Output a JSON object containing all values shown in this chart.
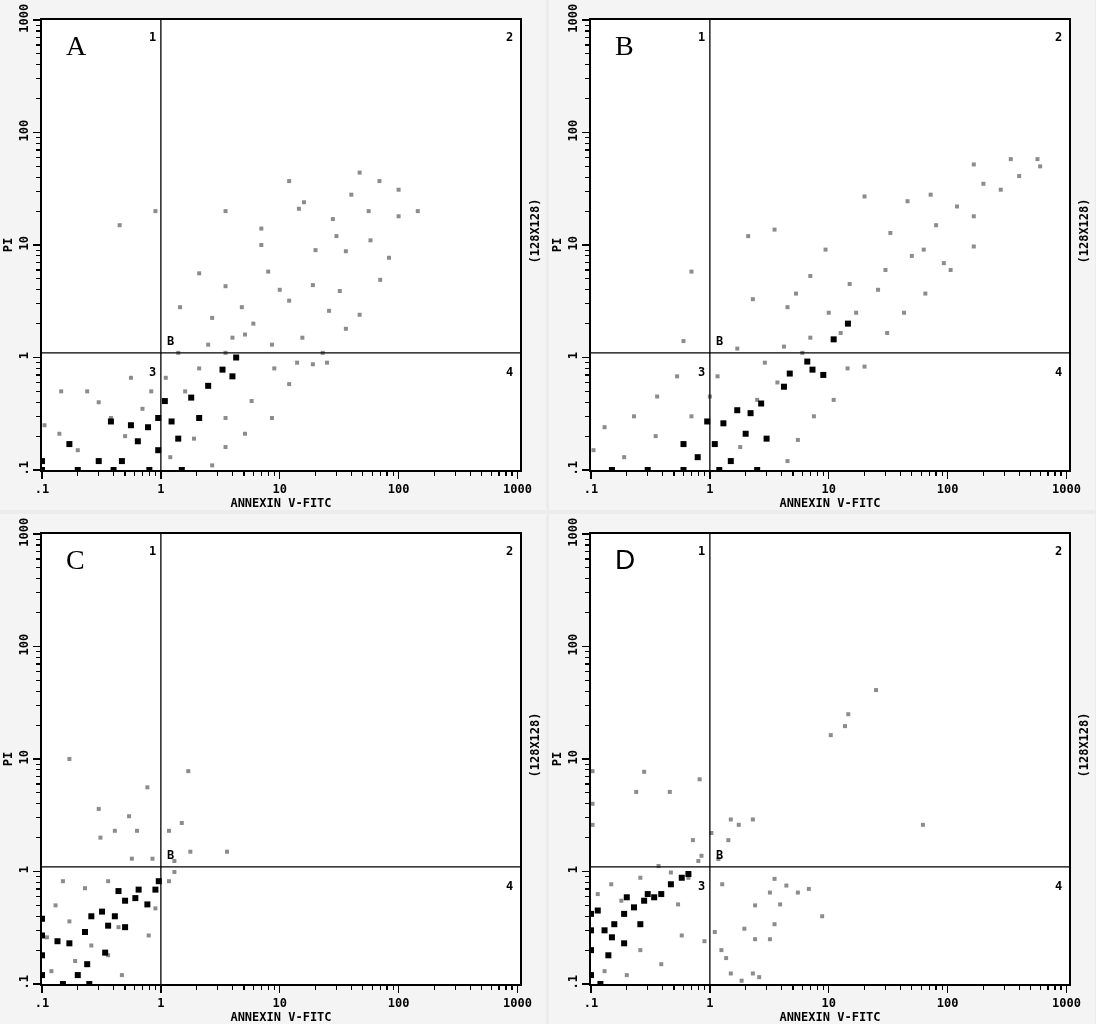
{
  "chart_data": [
    {
      "type": "scatter",
      "title": "A",
      "xlabel": "ANNEXIN V-FITC",
      "ylabel": "PI",
      "log": "xy",
      "marker": "square",
      "xlim": [
        0.1,
        1050
      ],
      "ylim": [
        0.1,
        1000
      ],
      "xticks": [
        {
          "value": 0.1,
          "label": ".1"
        },
        {
          "value": 0.2,
          "label": null
        },
        {
          "value": 0.3,
          "label": null
        },
        {
          "value": 0.4,
          "label": null
        },
        {
          "value": 0.5,
          "label": null
        },
        {
          "value": 0.6,
          "label": null
        },
        {
          "value": 0.7,
          "label": null
        },
        {
          "value": 0.8,
          "label": null
        },
        {
          "value": 0.9,
          "label": null
        },
        1,
        {
          "value": 2,
          "label": null
        },
        {
          "value": 3,
          "label": null
        },
        {
          "value": 4,
          "label": null
        },
        {
          "value": 5,
          "label": null
        },
        {
          "value": 6,
          "label": null
        },
        {
          "value": 7,
          "label": null
        },
        {
          "value": 8,
          "label": null
        },
        {
          "value": 9,
          "label": null
        },
        10,
        {
          "value": 20,
          "label": null
        },
        {
          "value": 30,
          "label": null
        },
        {
          "value": 40,
          "label": null
        },
        {
          "value": 50,
          "label": null
        },
        {
          "value": 60,
          "label": null
        },
        {
          "value": 70,
          "label": null
        },
        {
          "value": 80,
          "label": null
        },
        {
          "value": 90,
          "label": null
        },
        100,
        {
          "value": 200,
          "label": null
        },
        {
          "value": 300,
          "label": null
        },
        {
          "value": 400,
          "label": null
        },
        {
          "value": 500,
          "label": null
        },
        {
          "value": 600,
          "label": null
        },
        {
          "value": 700,
          "label": null
        },
        {
          "value": 800,
          "label": null
        },
        {
          "value": 900,
          "label": null
        },
        1000
      ],
      "yticks": [
        {
          "value": 0.1,
          "label": ".1"
        },
        {
          "value": 0.2,
          "label": null
        },
        {
          "value": 0.3,
          "label": null
        },
        {
          "value": 0.4,
          "label": null
        },
        {
          "value": 0.5,
          "label": null
        },
        {
          "value": 0.6,
          "label": null
        },
        {
          "value": 0.7,
          "label": null
        },
        {
          "value": 0.8,
          "label": null
        },
        {
          "value": 0.9,
          "label": null
        },
        1,
        {
          "value": 2,
          "label": null
        },
        {
          "value": 3,
          "label": null
        },
        {
          "value": 4,
          "label": null
        },
        {
          "value": 5,
          "label": null
        },
        {
          "value": 6,
          "label": null
        },
        {
          "value": 7,
          "label": null
        },
        {
          "value": 8,
          "label": null
        },
        {
          "value": 9,
          "label": null
        },
        10,
        {
          "value": 20,
          "label": null
        },
        {
          "value": 30,
          "label": null
        },
        {
          "value": 40,
          "label": null
        },
        {
          "value": 50,
          "label": null
        },
        {
          "value": 60,
          "label": null
        },
        {
          "value": 70,
          "label": null
        },
        {
          "value": 80,
          "label": null
        },
        {
          "value": 90,
          "label": null
        },
        100,
        {
          "value": 200,
          "label": null
        },
        {
          "value": 300,
          "label": null
        },
        {
          "value": 400,
          "label": null
        },
        {
          "value": 500,
          "label": null
        },
        {
          "value": 600,
          "label": null
        },
        {
          "value": 700,
          "label": null
        },
        {
          "value": 800,
          "label": null
        },
        {
          "value": 900,
          "label": null
        },
        1000
      ],
      "ref_lines": [
        {
          "axis": "x",
          "value": 1
        },
        {
          "axis": "y",
          "value": 1.1
        }
      ],
      "annotations": [
        "1",
        "2",
        "3",
        "4",
        "B",
        "(128X128)"
      ],
      "series": [
        {
          "color": "#8c8c8c",
          "x": [
            0.45,
            0.9,
            3.5,
            2.1,
            3.5,
            1.45,
            12,
            47,
            69,
            100,
            145,
            100,
            83,
            70,
            47,
            36,
            23,
            19,
            12,
            8.6,
            5.1,
            3.5,
            2.7,
            0.145,
            0.24,
            0.56,
            0.105,
            5.1,
            7,
            7,
            8,
            14.5,
            16,
            28,
            36,
            19,
            12,
            4.8,
            2.7,
            56,
            58,
            32,
            26,
            15.5,
            8.6,
            3.5,
            2.1,
            1.4,
            1.1,
            0.83,
            5.8,
            3.5,
            1.9,
            0.38,
            0.2,
            0.14,
            9,
            40,
            30,
            20,
            10,
            6,
            4,
            2.5,
            1.6,
            0.7,
            0.3,
            0.5,
            1.2,
            25,
            14
          ],
          "values": [
            15,
            20,
            20,
            5.6,
            4.3,
            2.8,
            37,
            44,
            37,
            31,
            20,
            18,
            7.7,
            4.9,
            2.4,
            1.8,
            1.1,
            0.87,
            0.58,
            0.29,
            0.21,
            0.16,
            0.11,
            0.5,
            0.5,
            0.66,
            0.25,
            1.6,
            14,
            10,
            5.8,
            21,
            24,
            17,
            8.8,
            4.4,
            3.2,
            2.8,
            2.25,
            20,
            11,
            3.9,
            2.6,
            1.5,
            1.3,
            1.1,
            0.8,
            1.1,
            0.66,
            0.5,
            0.41,
            0.29,
            0.19,
            0.29,
            0.15,
            0.21,
            0.8,
            28,
            12,
            9,
            4,
            2,
            1.5,
            1.3,
            0.5,
            0.35,
            0.4,
            0.2,
            0.13,
            0.9,
            0.9
          ]
        },
        {
          "color": "#000000",
          "x": [
            0.17,
            0.38,
            0.47,
            0.56,
            0.64,
            0.78,
            0.95,
            1.08,
            1.23,
            1.4,
            1.8,
            2.1,
            3.3,
            4,
            4.3,
            2.5,
            0.3,
            0.95,
            0.1,
            0.2,
            0.4,
            0.8,
            1.5,
            0.1
          ],
          "values": [
            0.17,
            0.27,
            0.12,
            0.25,
            0.18,
            0.24,
            0.15,
            0.41,
            0.27,
            0.19,
            0.44,
            0.29,
            0.78,
            0.68,
            1.0,
            0.56,
            0.12,
            0.29,
            0.1,
            0.1,
            0.1,
            0.1,
            0.1,
            0.12
          ]
        }
      ]
    },
    {
      "type": "scatter",
      "title": "B",
      "xlabel": "ANNEXIN V-FITC",
      "ylabel": "PI",
      "log": "xy",
      "marker": "square",
      "xlim": [
        0.1,
        1050
      ],
      "ylim": [
        0.1,
        1000
      ],
      "xticks": [
        {
          "value": 0.1,
          "label": ".1"
        },
        {
          "value": 0.2,
          "label": null
        },
        {
          "value": 0.3,
          "label": null
        },
        {
          "value": 0.4,
          "label": null
        },
        {
          "value": 0.5,
          "label": null
        },
        {
          "value": 0.6,
          "label": null
        },
        {
          "value": 0.7,
          "label": null
        },
        {
          "value": 0.8,
          "label": null
        },
        {
          "value": 0.9,
          "label": null
        },
        1,
        {
          "value": 2,
          "label": null
        },
        {
          "value": 3,
          "label": null
        },
        {
          "value": 4,
          "label": null
        },
        {
          "value": 5,
          "label": null
        },
        {
          "value": 6,
          "label": null
        },
        {
          "value": 7,
          "label": null
        },
        {
          "value": 8,
          "label": null
        },
        {
          "value": 9,
          "label": null
        },
        10,
        {
          "value": 20,
          "label": null
        },
        {
          "value": 30,
          "label": null
        },
        {
          "value": 40,
          "label": null
        },
        {
          "value": 50,
          "label": null
        },
        {
          "value": 60,
          "label": null
        },
        {
          "value": 70,
          "label": null
        },
        {
          "value": 80,
          "label": null
        },
        {
          "value": 90,
          "label": null
        },
        100,
        {
          "value": 200,
          "label": null
        },
        {
          "value": 300,
          "label": null
        },
        {
          "value": 400,
          "label": null
        },
        {
          "value": 500,
          "label": null
        },
        {
          "value": 600,
          "label": null
        },
        {
          "value": 700,
          "label": null
        },
        {
          "value": 800,
          "label": null
        },
        {
          "value": 900,
          "label": null
        },
        1000
      ],
      "yticks": [
        {
          "value": 0.1,
          "label": ".1"
        },
        {
          "value": 0.2,
          "label": null
        },
        {
          "value": 0.3,
          "label": null
        },
        {
          "value": 0.4,
          "label": null
        },
        {
          "value": 0.5,
          "label": null
        },
        {
          "value": 0.6,
          "label": null
        },
        {
          "value": 0.7,
          "label": null
        },
        {
          "value": 0.8,
          "label": null
        },
        {
          "value": 0.9,
          "label": null
        },
        1,
        {
          "value": 2,
          "label": null
        },
        {
          "value": 3,
          "label": null
        },
        {
          "value": 4,
          "label": null
        },
        {
          "value": 5,
          "label": null
        },
        {
          "value": 6,
          "label": null
        },
        {
          "value": 7,
          "label": null
        },
        {
          "value": 8,
          "label": null
        },
        {
          "value": 9,
          "label": null
        },
        10,
        {
          "value": 20,
          "label": null
        },
        {
          "value": 30,
          "label": null
        },
        {
          "value": 40,
          "label": null
        },
        {
          "value": 50,
          "label": null
        },
        {
          "value": 60,
          "label": null
        },
        {
          "value": 70,
          "label": null
        },
        {
          "value": 80,
          "label": null
        },
        {
          "value": 90,
          "label": null
        },
        100,
        {
          "value": 200,
          "label": null
        },
        {
          "value": 300,
          "label": null
        },
        {
          "value": 400,
          "label": null
        },
        {
          "value": 500,
          "label": null
        },
        {
          "value": 600,
          "label": null
        },
        {
          "value": 700,
          "label": null
        },
        {
          "value": 800,
          "label": null
        },
        {
          "value": 900,
          "label": null
        },
        1000
      ],
      "ref_lines": [
        {
          "axis": "x",
          "value": 1
        },
        {
          "axis": "y",
          "value": 1.1
        }
      ],
      "annotations": [
        "1",
        "2",
        "3",
        "4",
        "B",
        "(128X128)"
      ],
      "series": [
        {
          "color": "#8c8c8c",
          "x": [
            0.7,
            0.6,
            2.1,
            3.5,
            2.3,
            4.5,
            5.3,
            7,
            9.4,
            20,
            46,
            72,
            166,
            340,
            570,
            600,
            400,
            280,
            166,
            166,
            106,
            65,
            43,
            31,
            20,
            14.4,
            11,
            7.5,
            5.5,
            4.5,
            33,
            63,
            93,
            26,
            17,
            12.6,
            7,
            4.2,
            1.7,
            2.9,
            1.16,
            0.53,
            0.36,
            0.23,
            0.13,
            0.105,
            0.19,
            2.5,
            1.8,
            0.7,
            3.7,
            120,
            200,
            80,
            50,
            30,
            15,
            10,
            6,
            0.35,
            1.0
          ],
          "values": [
            5.8,
            1.4,
            12,
            13.7,
            3.3,
            2.8,
            3.7,
            5.3,
            9.1,
            27,
            24.5,
            28,
            52,
            58,
            58,
            50,
            41,
            31,
            18,
            9.7,
            6,
            3.7,
            2.5,
            1.65,
            0.83,
            0.8,
            0.42,
            0.3,
            0.185,
            0.12,
            12.8,
            9.1,
            6.9,
            4,
            2.5,
            1.65,
            1.5,
            1.25,
            1.2,
            0.9,
            0.68,
            0.68,
            0.45,
            0.3,
            0.24,
            0.15,
            0.13,
            0.42,
            0.16,
            0.3,
            0.6,
            22,
            35,
            15,
            8,
            6,
            4.5,
            2.5,
            1.1,
            0.2,
            0.45
          ]
        },
        {
          "color": "#000000",
          "x": [
            4.7,
            7.3,
            9,
            6.6,
            14.5,
            11,
            1.7,
            2.2,
            2.7,
            1.3,
            1.1,
            0.79,
            0.6,
            0.95,
            2.0,
            4.2,
            1.5,
            3.0,
            0.15,
            0.3,
            0.6,
            1.2,
            2.5
          ],
          "values": [
            0.72,
            0.78,
            0.7,
            0.92,
            2.0,
            1.45,
            0.34,
            0.32,
            0.39,
            0.26,
            0.17,
            0.13,
            0.17,
            0.27,
            0.21,
            0.55,
            0.12,
            0.19,
            0.1,
            0.1,
            0.1,
            0.1,
            0.1
          ]
        }
      ]
    },
    {
      "type": "scatter",
      "title": "C",
      "xlabel": "ANNEXIN V-FITC",
      "ylabel": "PI",
      "log": "xy",
      "marker": "square",
      "xlim": [
        0.1,
        1050
      ],
      "ylim": [
        0.1,
        1000
      ],
      "xticks": [
        {
          "value": 0.1,
          "label": ".1"
        },
        {
          "value": 0.2,
          "label": null
        },
        {
          "value": 0.3,
          "label": null
        },
        {
          "value": 0.4,
          "label": null
        },
        {
          "value": 0.5,
          "label": null
        },
        {
          "value": 0.6,
          "label": null
        },
        {
          "value": 0.7,
          "label": null
        },
        {
          "value": 0.8,
          "label": null
        },
        {
          "value": 0.9,
          "label": null
        },
        1,
        {
          "value": 2,
          "label": null
        },
        {
          "value": 3,
          "label": null
        },
        {
          "value": 4,
          "label": null
        },
        {
          "value": 5,
          "label": null
        },
        {
          "value": 6,
          "label": null
        },
        {
          "value": 7,
          "label": null
        },
        {
          "value": 8,
          "label": null
        },
        {
          "value": 9,
          "label": null
        },
        10,
        {
          "value": 20,
          "label": null
        },
        {
          "value": 30,
          "label": null
        },
        {
          "value": 40,
          "label": null
        },
        {
          "value": 50,
          "label": null
        },
        {
          "value": 60,
          "label": null
        },
        {
          "value": 70,
          "label": null
        },
        {
          "value": 80,
          "label": null
        },
        {
          "value": 90,
          "label": null
        },
        100,
        {
          "value": 200,
          "label": null
        },
        {
          "value": 300,
          "label": null
        },
        {
          "value": 400,
          "label": null
        },
        {
          "value": 500,
          "label": null
        },
        {
          "value": 600,
          "label": null
        },
        {
          "value": 700,
          "label": null
        },
        {
          "value": 800,
          "label": null
        },
        {
          "value": 900,
          "label": null
        },
        1000
      ],
      "yticks": [
        {
          "value": 0.1,
          "label": ".1"
        },
        {
          "value": 0.2,
          "label": null
        },
        {
          "value": 0.3,
          "label": null
        },
        {
          "value": 0.4,
          "label": null
        },
        {
          "value": 0.5,
          "label": null
        },
        {
          "value": 0.6,
          "label": null
        },
        {
          "value": 0.7,
          "label": null
        },
        {
          "value": 0.8,
          "label": null
        },
        {
          "value": 0.9,
          "label": null
        },
        1,
        {
          "value": 2,
          "label": null
        },
        {
          "value": 3,
          "label": null
        },
        {
          "value": 4,
          "label": null
        },
        {
          "value": 5,
          "label": null
        },
        {
          "value": 6,
          "label": null
        },
        {
          "value": 7,
          "label": null
        },
        {
          "value": 8,
          "label": null
        },
        {
          "value": 9,
          "label": null
        },
        10,
        {
          "value": 20,
          "label": null
        },
        {
          "value": 30,
          "label": null
        },
        {
          "value": 40,
          "label": null
        },
        {
          "value": 50,
          "label": null
        },
        {
          "value": 60,
          "label": null
        },
        {
          "value": 70,
          "label": null
        },
        {
          "value": 80,
          "label": null
        },
        {
          "value": 90,
          "label": null
        },
        100,
        {
          "value": 200,
          "label": null
        },
        {
          "value": 300,
          "label": null
        },
        {
          "value": 400,
          "label": null
        },
        {
          "value": 500,
          "label": null
        },
        {
          "value": 600,
          "label": null
        },
        {
          "value": 700,
          "label": null
        },
        {
          "value": 800,
          "label": null
        },
        {
          "value": 900,
          "label": null
        },
        1000
      ],
      "ref_lines": [
        {
          "axis": "x",
          "value": 1
        },
        {
          "axis": "y",
          "value": 1.1
        }
      ],
      "annotations": [
        "1",
        "2",
        "4",
        "B",
        "(128X128)"
      ],
      "series": [
        {
          "color": "#8c8c8c",
          "x": [
            0.17,
            1.7,
            0.77,
            0.3,
            0.54,
            0.63,
            0.41,
            0.31,
            1.17,
            1.5,
            3.6,
            1.77,
            0.85,
            0.57,
            1.3,
            0.15,
            0.36,
            0.23,
            1.17,
            1.3,
            0.9,
            0.79,
            0.44,
            0.36,
            0.19,
            0.12,
            0.13,
            0.26,
            0.47,
            0.17,
            0.11
          ],
          "values": [
            10,
            7.8,
            5.6,
            3.6,
            3.1,
            2.3,
            2.3,
            2.0,
            2.3,
            2.7,
            1.5,
            1.5,
            1.3,
            1.3,
            1.24,
            0.82,
            0.82,
            0.71,
            0.82,
            0.99,
            0.47,
            0.27,
            0.32,
            0.18,
            0.16,
            0.13,
            0.5,
            0.22,
            0.12,
            0.36,
            0.26
          ]
        },
        {
          "color": "#000000",
          "x": [
            0.135,
            0.17,
            0.23,
            0.26,
            0.32,
            0.41,
            0.36,
            0.5,
            0.44,
            0.5,
            0.61,
            0.65,
            0.77,
            0.96,
            0.9,
            0.24,
            0.34,
            0.2,
            0.1,
            0.1,
            0.1,
            0.1,
            0.15,
            0.25
          ],
          "values": [
            0.24,
            0.23,
            0.29,
            0.4,
            0.44,
            0.4,
            0.33,
            0.32,
            0.67,
            0.55,
            0.58,
            0.69,
            0.51,
            0.82,
            0.69,
            0.15,
            0.19,
            0.12,
            0.12,
            0.18,
            0.27,
            0.38,
            0.1,
            0.1
          ]
        }
      ]
    },
    {
      "type": "scatter",
      "title": "D",
      "xlabel": "ANNEXIN V-FITC",
      "ylabel": "PI",
      "log": "xy",
      "marker": "square",
      "xlim": [
        0.1,
        1050
      ],
      "ylim": [
        0.1,
        1000
      ],
      "xticks": [
        {
          "value": 0.1,
          "label": ".1"
        },
        {
          "value": 0.2,
          "label": null
        },
        {
          "value": 0.3,
          "label": null
        },
        {
          "value": 0.4,
          "label": null
        },
        {
          "value": 0.5,
          "label": null
        },
        {
          "value": 0.6,
          "label": null
        },
        {
          "value": 0.7,
          "label": null
        },
        {
          "value": 0.8,
          "label": null
        },
        {
          "value": 0.9,
          "label": null
        },
        1,
        {
          "value": 2,
          "label": null
        },
        {
          "value": 3,
          "label": null
        },
        {
          "value": 4,
          "label": null
        },
        {
          "value": 5,
          "label": null
        },
        {
          "value": 6,
          "label": null
        },
        {
          "value": 7,
          "label": null
        },
        {
          "value": 8,
          "label": null
        },
        {
          "value": 9,
          "label": null
        },
        10,
        {
          "value": 20,
          "label": null
        },
        {
          "value": 30,
          "label": null
        },
        {
          "value": 40,
          "label": null
        },
        {
          "value": 50,
          "label": null
        },
        {
          "value": 60,
          "label": null
        },
        {
          "value": 70,
          "label": null
        },
        {
          "value": 80,
          "label": null
        },
        {
          "value": 90,
          "label": null
        },
        100,
        {
          "value": 200,
          "label": null
        },
        {
          "value": 300,
          "label": null
        },
        {
          "value": 400,
          "label": null
        },
        {
          "value": 500,
          "label": null
        },
        {
          "value": 600,
          "label": null
        },
        {
          "value": 700,
          "label": null
        },
        {
          "value": 800,
          "label": null
        },
        {
          "value": 900,
          "label": null
        },
        1000
      ],
      "yticks": [
        {
          "value": 0.1,
          "label": ".1"
        },
        {
          "value": 0.2,
          "label": null
        },
        {
          "value": 0.3,
          "label": null
        },
        {
          "value": 0.4,
          "label": null
        },
        {
          "value": 0.5,
          "label": null
        },
        {
          "value": 0.6,
          "label": null
        },
        {
          "value": 0.7,
          "label": null
        },
        {
          "value": 0.8,
          "label": null
        },
        {
          "value": 0.9,
          "label": null
        },
        1,
        {
          "value": 2,
          "label": null
        },
        {
          "value": 3,
          "label": null
        },
        {
          "value": 4,
          "label": null
        },
        {
          "value": 5,
          "label": null
        },
        {
          "value": 6,
          "label": null
        },
        {
          "value": 7,
          "label": null
        },
        {
          "value": 8,
          "label": null
        },
        {
          "value": 9,
          "label": null
        },
        10,
        {
          "value": 20,
          "label": null
        },
        {
          "value": 30,
          "label": null
        },
        {
          "value": 40,
          "label": null
        },
        {
          "value": 50,
          "label": null
        },
        {
          "value": 60,
          "label": null
        },
        {
          "value": 70,
          "label": null
        },
        {
          "value": 80,
          "label": null
        },
        {
          "value": 90,
          "label": null
        },
        100,
        {
          "value": 200,
          "label": null
        },
        {
          "value": 300,
          "label": null
        },
        {
          "value": 400,
          "label": null
        },
        {
          "value": 500,
          "label": null
        },
        {
          "value": 600,
          "label": null
        },
        {
          "value": 700,
          "label": null
        },
        {
          "value": 800,
          "label": null
        },
        {
          "value": 900,
          "label": null
        },
        1000
      ],
      "ref_lines": [
        {
          "axis": "x",
          "value": 1
        },
        {
          "axis": "y",
          "value": 1.1
        }
      ],
      "annotations": [
        "1",
        "2",
        "3",
        "4",
        "B",
        "(128X128)"
      ],
      "series": [
        {
          "color": "#8c8c8c",
          "x": [
            25,
            14.6,
            13.7,
            10.4,
            62,
            0.28,
            0.82,
            0.24,
            0.46,
            0.103,
            0.103,
            0.103,
            1.5,
            2.3,
            1.75,
            1.43,
            1.03,
            0.72,
            0.85,
            1.18,
            3.5,
            1.27,
            4.4,
            3.2,
            5.5,
            6.8,
            3.9,
            2.4,
            8.8,
            3.5,
            1.95,
            2.4,
            3.2,
            1.1,
            1.25,
            1.37,
            0.9,
            1.5,
            2.3,
            1.85,
            2.6,
            0.58,
            0.39,
            0.26,
            0.2,
            0.13,
            0.114,
            0.148,
            0.26,
            0.37,
            0.47,
            0.66,
            0.8,
            0.18,
            0.54
          ],
          "values": [
            41,
            25,
            19.6,
            16.3,
            2.6,
            7.7,
            6.6,
            5.1,
            5.1,
            7.8,
            4,
            2.6,
            2.9,
            2.9,
            2.6,
            1.9,
            2.2,
            1.9,
            1.38,
            1.29,
            0.86,
            0.77,
            0.75,
            0.65,
            0.65,
            0.7,
            0.51,
            0.5,
            0.4,
            0.34,
            0.31,
            0.25,
            0.25,
            0.29,
            0.2,
            0.17,
            0.24,
            0.124,
            0.124,
            0.107,
            0.115,
            0.27,
            0.15,
            0.2,
            0.12,
            0.13,
            0.63,
            0.77,
            0.88,
            1.12,
            0.98,
            0.88,
            1.24,
            0.55,
            0.51
          ]
        },
        {
          "color": "#000000",
          "x": [
            0.114,
            0.13,
            0.157,
            0.19,
            0.23,
            0.28,
            0.34,
            0.39,
            0.47,
            0.58,
            0.66,
            0.26,
            0.15,
            0.19,
            0.14,
            0.3,
            0.2,
            0.1,
            0.1,
            0.1,
            0.1,
            0.12
          ],
          "values": [
            0.45,
            0.3,
            0.34,
            0.42,
            0.48,
            0.55,
            0.59,
            0.63,
            0.77,
            0.88,
            0.95,
            0.34,
            0.26,
            0.23,
            0.18,
            0.63,
            0.59,
            0.12,
            0.2,
            0.3,
            0.42,
            0.1
          ]
        }
      ]
    }
  ]
}
